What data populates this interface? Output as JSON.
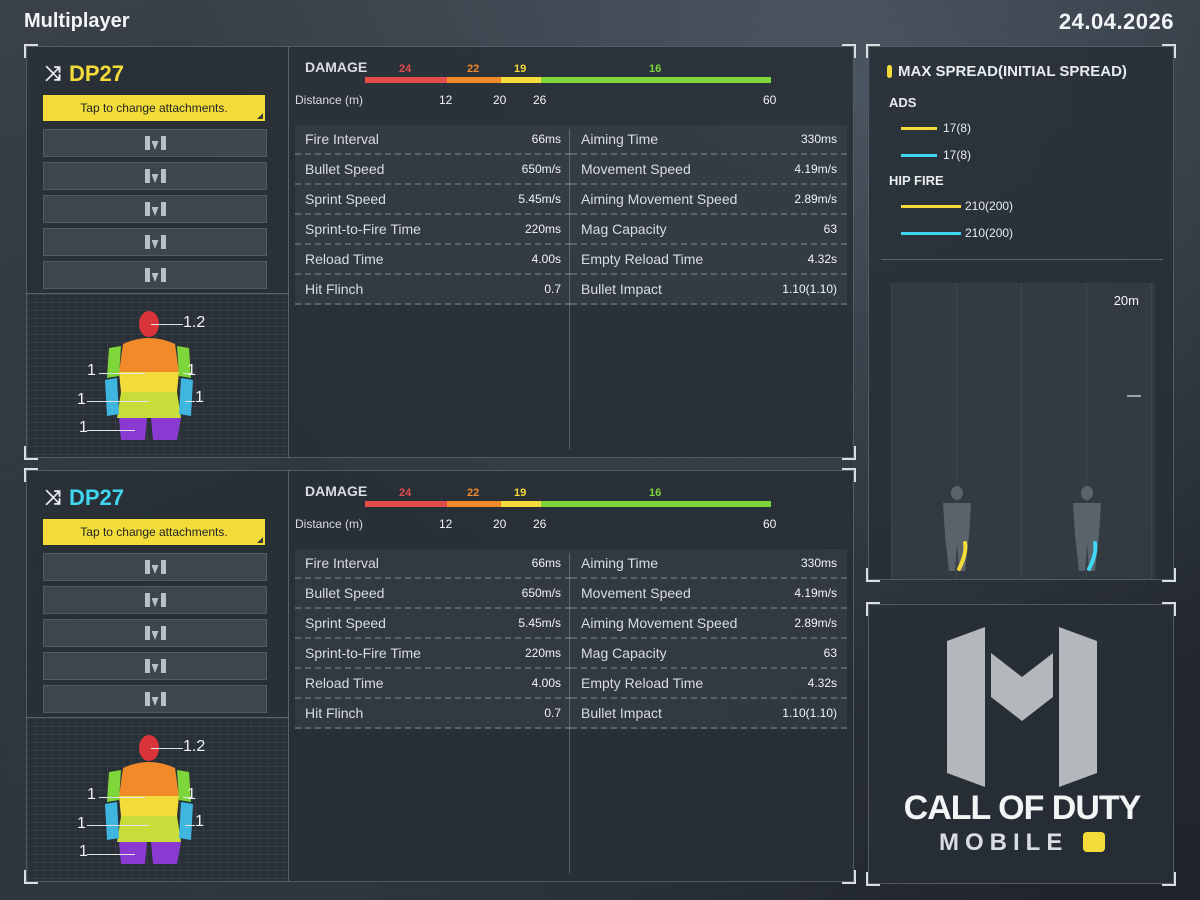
{
  "header": {
    "title": "Multiplayer",
    "date": "24.04.2026"
  },
  "panels": [
    {
      "weapon_name": "DP27",
      "name_color": "#f3dc3a",
      "attach_label": "Tap to change attachments.",
      "damage_label": "DAMAGE",
      "distance_label": "Distance (m)",
      "damage_values": [
        "24",
        "22",
        "19",
        "16"
      ],
      "distance_ticks": [
        "12",
        "20",
        "26",
        "60"
      ],
      "stats_left": [
        {
          "name": "Fire Interval",
          "value": "66ms"
        },
        {
          "name": "Bullet Speed",
          "value": "650m/s"
        },
        {
          "name": "Sprint Speed",
          "value": "5.45m/s"
        },
        {
          "name": "Sprint-to-Fire Time",
          "value": "220ms"
        },
        {
          "name": "Reload Time",
          "value": "4.00s"
        },
        {
          "name": "Hit Flinch",
          "value": "0.7"
        }
      ],
      "stats_right": [
        {
          "name": "Aiming Time",
          "value": "330ms"
        },
        {
          "name": "Movement Speed",
          "value": "4.19m/s"
        },
        {
          "name": "Aiming Movement Speed",
          "value": "2.89m/s"
        },
        {
          "name": "Mag Capacity",
          "value": "63"
        },
        {
          "name": "Empty Reload Time",
          "value": "4.32s"
        },
        {
          "name": "Bullet Impact",
          "value": "1.10(1.10)"
        }
      ],
      "hitbox": {
        "head": "1.2",
        "upper_arm_left": "1",
        "upper_arm_right": "1",
        "torso": "1",
        "forearm_right": "1",
        "legs": "1"
      }
    },
    {
      "weapon_name": "DP27",
      "name_color": "#3fd6f0",
      "attach_label": "Tap to change attachments.",
      "damage_label": "DAMAGE",
      "distance_label": "Distance (m)",
      "damage_values": [
        "24",
        "22",
        "19",
        "16"
      ],
      "distance_ticks": [
        "12",
        "20",
        "26",
        "60"
      ],
      "stats_left": [
        {
          "name": "Fire Interval",
          "value": "66ms"
        },
        {
          "name": "Bullet Speed",
          "value": "650m/s"
        },
        {
          "name": "Sprint Speed",
          "value": "5.45m/s"
        },
        {
          "name": "Sprint-to-Fire Time",
          "value": "220ms"
        },
        {
          "name": "Reload Time",
          "value": "4.00s"
        },
        {
          "name": "Hit Flinch",
          "value": "0.7"
        }
      ],
      "stats_right": [
        {
          "name": "Aiming Time",
          "value": "330ms"
        },
        {
          "name": "Movement Speed",
          "value": "4.19m/s"
        },
        {
          "name": "Aiming Movement Speed",
          "value": "2.89m/s"
        },
        {
          "name": "Mag Capacity",
          "value": "63"
        },
        {
          "name": "Empty Reload Time",
          "value": "4.32s"
        },
        {
          "name": "Bullet Impact",
          "value": "1.10(1.10)"
        }
      ],
      "hitbox": {
        "head": "1.2",
        "upper_arm_left": "1",
        "upper_arm_right": "1",
        "torso": "1",
        "forearm_right": "1",
        "legs": "1"
      }
    }
  ],
  "spread": {
    "title": "MAX SPREAD(INITIAL SPREAD)",
    "ads_label": "ADS",
    "ads": [
      "17(8)",
      "17(8)"
    ],
    "hip_label": "HIP FIRE",
    "hip": [
      "210(200)",
      "210(200)"
    ],
    "distance": "20m"
  },
  "colors": {
    "weapon1": "#f3dc3a",
    "weapon2": "#3fd6f0",
    "damage": [
      "#e24c4c",
      "#f08a2a",
      "#f3dc3a",
      "#7ed63a"
    ]
  },
  "logo": {
    "line1": "CALL OF DUTY",
    "line2": "MOBILE"
  }
}
